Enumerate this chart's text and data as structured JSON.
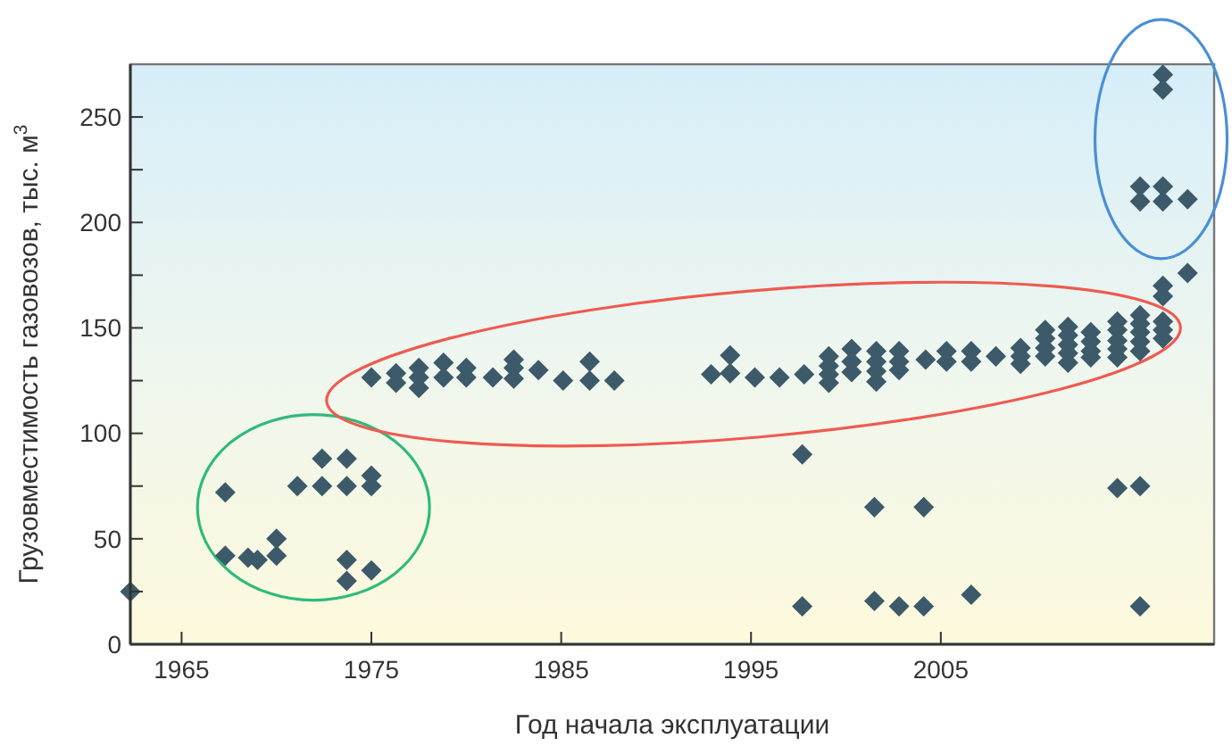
{
  "chart_data": {
    "type": "scatter",
    "xlabel": "Год начала эксплуатации",
    "ylabel": "Грузовместимость газовозов, тыс. м$^{3}$",
    "xlim": [
      1962.3,
      2019.4
    ],
    "ylim": [
      0,
      275
    ],
    "xticks": [
      1965,
      1975,
      1985,
      1995,
      2005
    ],
    "yticks": [
      0,
      {
        "value": 25,
        "label": null
      },
      50,
      {
        "value": 75,
        "label": null
      },
      100,
      {
        "value": 125,
        "label": null
      },
      150,
      {
        "value": 175,
        "label": null
      },
      200,
      {
        "value": 225,
        "label": null
      },
      250
    ],
    "grid": false,
    "marker": "diamond",
    "series": [
      {
        "color": "#3d5a6a",
        "x": [
          1962.3,
          1967.3,
          1967.3,
          1968.5,
          1969,
          1970,
          1970,
          1971.1,
          1972.4,
          1972.4,
          1973.7,
          1973.7,
          1973.7,
          1973.7,
          1975,
          1975,
          1975,
          1975,
          1976.3,
          1976.3,
          1977.5,
          1977.5,
          1977.5,
          1978.8,
          1978.8,
          1980,
          1980,
          1981.4,
          1982.5,
          1982.5,
          1982.5,
          1983.8,
          1985.1,
          1986.5,
          1986.5,
          1987.8,
          1992.9,
          1993.9,
          1993.9,
          1995.2,
          1996.5,
          1997.8,
          1999.1,
          1999.1,
          1999.1,
          1999.1,
          2000.3,
          2000.3,
          2000.3,
          2001.6,
          2001.6,
          2001.6,
          2001.6,
          2002.8,
          2002.8,
          2002.8,
          2004.2,
          2005.3,
          2005.3,
          2006.6,
          2006.6,
          2007.9,
          2009.2,
          2009.2,
          2009.2,
          2010.5,
          2010.5,
          2010.5,
          2010.5,
          2011.7,
          2011.7,
          2011.7,
          2011.7,
          2011.7,
          2012.9,
          2012.9,
          2012.9,
          2012.9,
          2014.3,
          2014.3,
          2014.3,
          2014.3,
          2014.3,
          2015.5,
          2015.5,
          2015.5,
          2015.5,
          2015.5,
          2016.7,
          2016.7,
          2016.7,
          2016.7,
          2016.7,
          2018,
          1997.7,
          2001.5,
          2004.1,
          1997.7,
          2001.5,
          2002.8,
          2004.1,
          2006.6,
          2014.3,
          2015.5,
          2015.5,
          2016.7,
          2016.7,
          2015.5,
          2015.5,
          2016.7,
          2016.7,
          2018
        ],
        "values": [
          25,
          72,
          42,
          41,
          40,
          50,
          42,
          75,
          88,
          75,
          88,
          75,
          40,
          30,
          80,
          75,
          35,
          126.5,
          128.5,
          124,
          131,
          126.5,
          121.5,
          133.5,
          126.5,
          131,
          126.5,
          126.5,
          135,
          131,
          126,
          130,
          125,
          134,
          125,
          125,
          128,
          137,
          128.5,
          126.5,
          126.5,
          128,
          136.5,
          132,
          128,
          124,
          140,
          134,
          129,
          139,
          134,
          129.5,
          124.5,
          139,
          134,
          130,
          135,
          139,
          134,
          139,
          134,
          136.5,
          140.5,
          136.5,
          133,
          149,
          145,
          140.5,
          136.5,
          150.5,
          146.5,
          142,
          138,
          133.5,
          148,
          143.5,
          139,
          136,
          153,
          149,
          144,
          140,
          136,
          156,
          152,
          148,
          143.5,
          139,
          153,
          149,
          145,
          170,
          165,
          176,
          90,
          65,
          65,
          18,
          20.5,
          18,
          18,
          23.5,
          74,
          75,
          18,
          270,
          263,
          217,
          210,
          217,
          210,
          211
        ]
      }
    ]
  }
}
